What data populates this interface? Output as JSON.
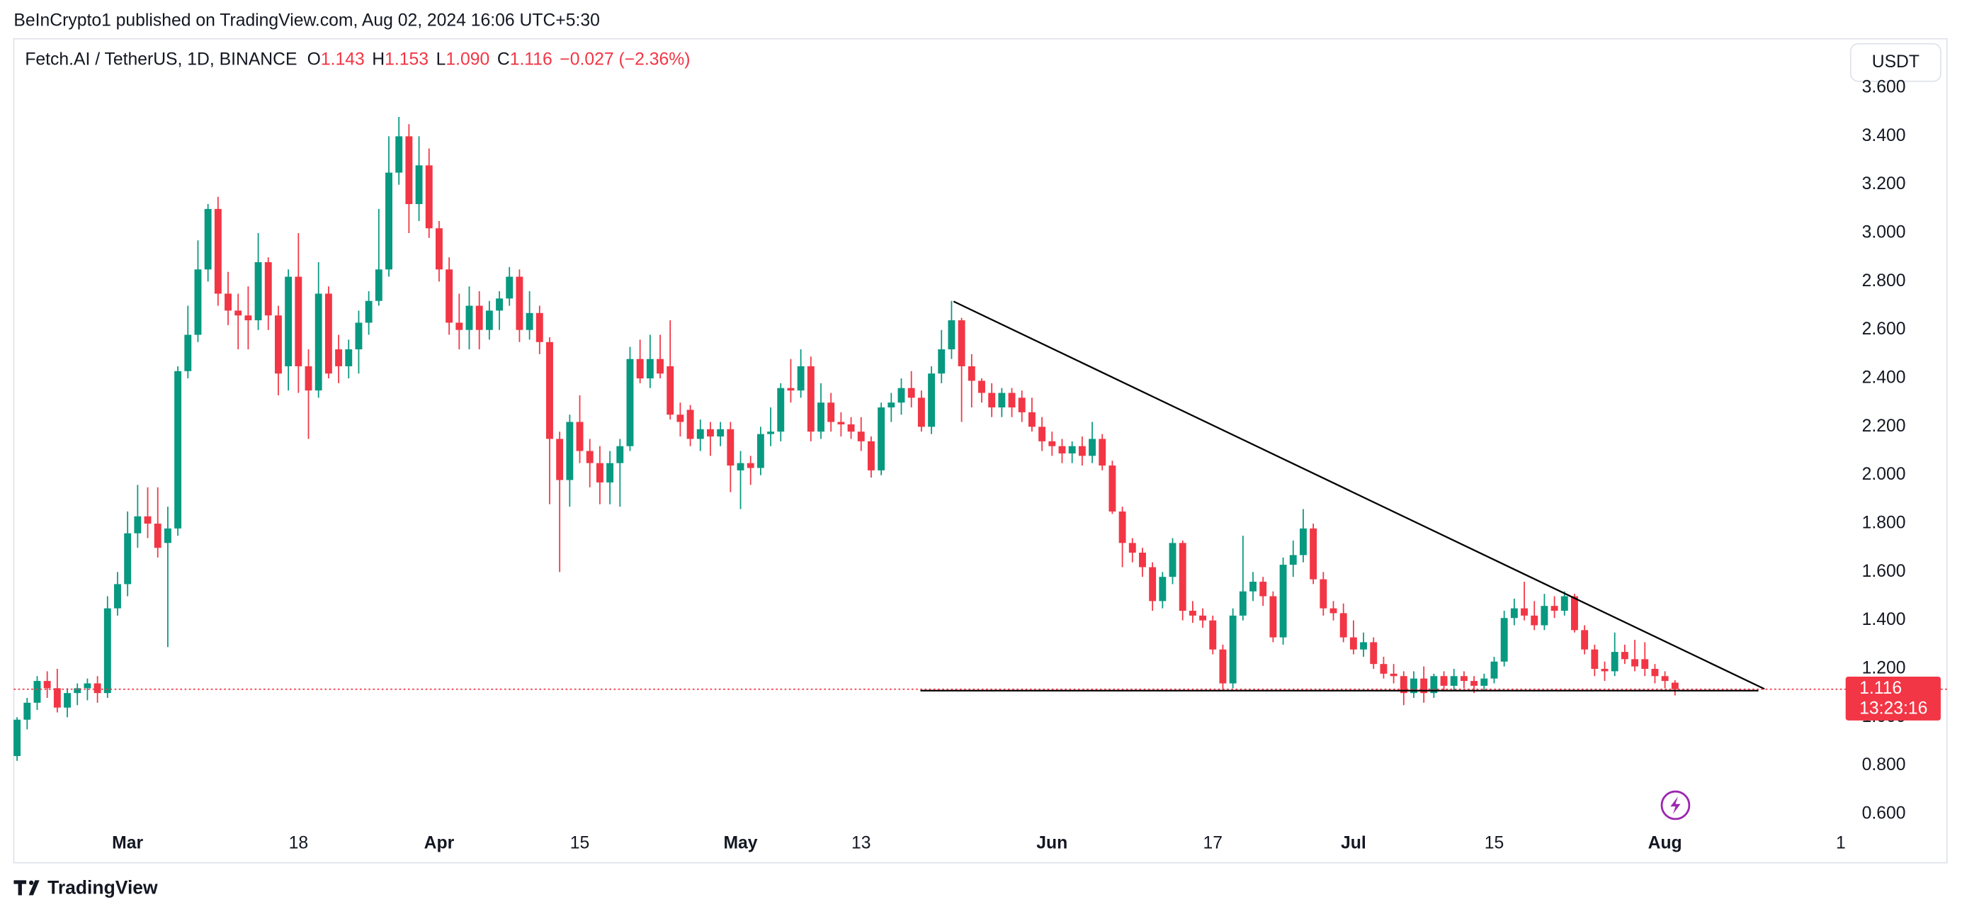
{
  "header": {
    "published": "BeInCrypto1 published on TradingView.com, Aug 02, 2024 16:06 UTC+5:30",
    "currency": "USDT",
    "brand": "TradingView"
  },
  "legend": {
    "symbol": "Fetch.AI / TetherUS, 1D, BINANCE",
    "items": [
      {
        "key": "O",
        "value": "1.143"
      },
      {
        "key": "H",
        "value": "1.153"
      },
      {
        "key": "L",
        "value": "1.090"
      },
      {
        "key": "C",
        "value": "1.116"
      }
    ],
    "change": "−0.027 (−2.36%)"
  },
  "chart_data": {
    "type": "candlestick",
    "up_color": "#089981",
    "down_color": "#f23645",
    "countdown": "13:23:16",
    "xlim": [
      -11.33,
      170.98
    ],
    "ylim": [
      0.554,
      3.803
    ],
    "xticks": [
      {
        "value": 0,
        "label": "Mar"
      },
      {
        "value": 17,
        "label": "18"
      },
      {
        "value": 31,
        "label": "Apr"
      },
      {
        "value": 45,
        "label": "15"
      },
      {
        "value": 61,
        "label": "May"
      },
      {
        "value": 73,
        "label": "13"
      },
      {
        "value": 92,
        "label": "Jun"
      },
      {
        "value": 108,
        "label": "17"
      },
      {
        "value": 122,
        "label": "Jul"
      },
      {
        "value": 136,
        "label": "15"
      },
      {
        "value": 153,
        "label": "Aug"
      },
      {
        "value": 170.5,
        "label": "1"
      }
    ],
    "yticks": [
      {
        "value": 0.6,
        "label": "0.600"
      },
      {
        "value": 0.8,
        "label": "0.800"
      },
      {
        "value": 1.0,
        "label": "1.000"
      },
      {
        "value": 1.2,
        "label": "1.200"
      },
      {
        "value": 1.4,
        "label": "1.400"
      },
      {
        "value": 1.6,
        "label": "1.600"
      },
      {
        "value": 1.8,
        "label": "1.800"
      },
      {
        "value": 2.0,
        "label": "2.000"
      },
      {
        "value": 2.2,
        "label": "2.200"
      },
      {
        "value": 2.4,
        "label": "2.400"
      },
      {
        "value": 2.6,
        "label": "2.600"
      },
      {
        "value": 2.8,
        "label": "2.800"
      },
      {
        "value": 3.0,
        "label": "3.000"
      },
      {
        "value": 3.2,
        "label": "3.200"
      },
      {
        "value": 3.4,
        "label": "3.400"
      },
      {
        "value": 3.6,
        "label": "3.600"
      }
    ],
    "trendlines": [
      {
        "color": "#000000",
        "x": [
          82.2,
          162.9
        ],
        "y": [
          2.718,
          1.117
        ]
      },
      {
        "color": "#000000",
        "x": [
          78.9,
          162.3
        ],
        "y": [
          1.11,
          1.11
        ]
      }
    ],
    "x": [
      -11,
      -10,
      -9,
      -8,
      -7,
      -6,
      -5,
      -4,
      -3,
      -2,
      -1,
      0,
      1,
      2,
      3,
      4,
      5,
      6,
      7,
      8,
      9,
      10,
      11,
      12,
      13,
      14,
      15,
      16,
      17,
      18,
      19,
      20,
      21,
      22,
      23,
      24,
      25,
      26,
      27,
      28,
      29,
      30,
      31,
      32,
      33,
      34,
      35,
      36,
      37,
      38,
      39,
      40,
      41,
      42,
      43,
      44,
      45,
      46,
      47,
      48,
      49,
      50,
      51,
      52,
      53,
      54,
      55,
      56,
      57,
      58,
      59,
      60,
      61,
      62,
      63,
      64,
      65,
      66,
      67,
      68,
      69,
      70,
      71,
      72,
      73,
      74,
      75,
      76,
      77,
      78,
      79,
      80,
      81,
      82,
      83,
      84,
      85,
      86,
      87,
      88,
      89,
      90,
      91,
      92,
      93,
      94,
      95,
      96,
      97,
      98,
      99,
      100,
      101,
      102,
      103,
      104,
      105,
      106,
      107,
      108,
      109,
      110,
      111,
      112,
      113,
      114,
      115,
      116,
      117,
      118,
      119,
      120,
      121,
      122,
      123,
      124,
      125,
      126,
      127,
      128,
      129,
      130,
      131,
      132,
      133,
      134,
      135,
      136,
      137,
      138,
      139,
      140,
      141,
      142,
      143,
      144,
      145,
      146,
      147,
      148,
      149,
      150,
      151,
      152,
      153,
      154
    ],
    "ohlc": [
      [
        0.84,
        1.0,
        0.82,
        0.99
      ],
      [
        0.99,
        1.08,
        0.95,
        1.06
      ],
      [
        1.06,
        1.17,
        1.03,
        1.15
      ],
      [
        1.15,
        1.19,
        1.08,
        1.12
      ],
      [
        1.12,
        1.2,
        1.02,
        1.04
      ],
      [
        1.04,
        1.12,
        1.0,
        1.1
      ],
      [
        1.1,
        1.14,
        1.05,
        1.12
      ],
      [
        1.12,
        1.16,
        1.07,
        1.14
      ],
      [
        1.14,
        1.17,
        1.06,
        1.1
      ],
      [
        1.1,
        1.5,
        1.08,
        1.45
      ],
      [
        1.45,
        1.6,
        1.42,
        1.55
      ],
      [
        1.55,
        1.85,
        1.5,
        1.76
      ],
      [
        1.76,
        1.96,
        1.7,
        1.83
      ],
      [
        1.83,
        1.95,
        1.74,
        1.8
      ],
      [
        1.8,
        1.95,
        1.66,
        1.7
      ],
      [
        1.72,
        1.87,
        1.29,
        1.78
      ],
      [
        1.78,
        2.45,
        1.75,
        2.43
      ],
      [
        2.43,
        2.7,
        2.4,
        2.58
      ],
      [
        2.58,
        2.97,
        2.55,
        2.85
      ],
      [
        2.85,
        3.12,
        2.8,
        3.1
      ],
      [
        3.1,
        3.15,
        2.7,
        2.75
      ],
      [
        2.75,
        2.84,
        2.62,
        2.68
      ],
      [
        2.68,
        2.75,
        2.52,
        2.66
      ],
      [
        2.66,
        2.78,
        2.52,
        2.64
      ],
      [
        2.64,
        3.0,
        2.6,
        2.88
      ],
      [
        2.88,
        2.9,
        2.6,
        2.66
      ],
      [
        2.66,
        2.7,
        2.33,
        2.42
      ],
      [
        2.45,
        2.85,
        2.35,
        2.82
      ],
      [
        2.82,
        3.0,
        2.34,
        2.45
      ],
      [
        2.45,
        2.52,
        2.15,
        2.35
      ],
      [
        2.35,
        2.88,
        2.32,
        2.75
      ],
      [
        2.75,
        2.78,
        2.4,
        2.42
      ],
      [
        2.52,
        2.58,
        2.38,
        2.45
      ],
      [
        2.45,
        2.56,
        2.4,
        2.52
      ],
      [
        2.52,
        2.68,
        2.42,
        2.63
      ],
      [
        2.63,
        2.76,
        2.58,
        2.72
      ],
      [
        2.72,
        3.1,
        2.7,
        2.85
      ],
      [
        2.85,
        3.4,
        2.82,
        3.25
      ],
      [
        3.25,
        3.48,
        3.2,
        3.4
      ],
      [
        3.4,
        3.45,
        3.0,
        3.12
      ],
      [
        3.12,
        3.4,
        3.05,
        3.28
      ],
      [
        3.28,
        3.35,
        2.98,
        3.02
      ],
      [
        3.02,
        3.05,
        2.8,
        2.85
      ],
      [
        2.85,
        2.9,
        2.58,
        2.63
      ],
      [
        2.63,
        2.75,
        2.52,
        2.6
      ],
      [
        2.6,
        2.78,
        2.52,
        2.7
      ],
      [
        2.7,
        2.76,
        2.52,
        2.6
      ],
      [
        2.6,
        2.72,
        2.56,
        2.68
      ],
      [
        2.68,
        2.76,
        2.6,
        2.73
      ],
      [
        2.73,
        2.86,
        2.7,
        2.82
      ],
      [
        2.82,
        2.85,
        2.55,
        2.6
      ],
      [
        2.6,
        2.76,
        2.56,
        2.67
      ],
      [
        2.67,
        2.7,
        2.5,
        2.55
      ],
      [
        2.55,
        2.57,
        1.88,
        2.15
      ],
      [
        2.15,
        2.18,
        1.6,
        1.98
      ],
      [
        1.98,
        2.25,
        1.87,
        2.22
      ],
      [
        2.22,
        2.33,
        2.05,
        2.1
      ],
      [
        2.1,
        2.15,
        1.95,
        2.05
      ],
      [
        2.05,
        2.12,
        1.88,
        1.97
      ],
      [
        1.97,
        2.1,
        1.88,
        2.05
      ],
      [
        2.05,
        2.15,
        1.87,
        2.12
      ],
      [
        2.12,
        2.53,
        2.1,
        2.48
      ],
      [
        2.48,
        2.56,
        2.38,
        2.4
      ],
      [
        2.4,
        2.58,
        2.36,
        2.48
      ],
      [
        2.48,
        2.58,
        2.4,
        2.42
      ],
      [
        2.45,
        2.64,
        2.23,
        2.25
      ],
      [
        2.25,
        2.3,
        2.16,
        2.22
      ],
      [
        2.27,
        2.29,
        2.12,
        2.15
      ],
      [
        2.15,
        2.23,
        2.1,
        2.19
      ],
      [
        2.19,
        2.22,
        2.08,
        2.16
      ],
      [
        2.16,
        2.22,
        2.12,
        2.19
      ],
      [
        2.19,
        2.22,
        1.93,
        2.04
      ],
      [
        2.02,
        2.1,
        1.86,
        2.05
      ],
      [
        2.05,
        2.08,
        1.96,
        2.03
      ],
      [
        2.03,
        2.2,
        2.0,
        2.17
      ],
      [
        2.17,
        2.28,
        2.12,
        2.18
      ],
      [
        2.18,
        2.38,
        2.14,
        2.36
      ],
      [
        2.36,
        2.48,
        2.3,
        2.35
      ],
      [
        2.35,
        2.52,
        2.32,
        2.45
      ],
      [
        2.45,
        2.49,
        2.14,
        2.18
      ],
      [
        2.18,
        2.38,
        2.15,
        2.3
      ],
      [
        2.3,
        2.34,
        2.18,
        2.22
      ],
      [
        2.22,
        2.26,
        2.16,
        2.21
      ],
      [
        2.21,
        2.24,
        2.15,
        2.18
      ],
      [
        2.18,
        2.24,
        2.1,
        2.14
      ],
      [
        2.14,
        2.16,
        1.99,
        2.02
      ],
      [
        2.02,
        2.3,
        2.0,
        2.28
      ],
      [
        2.28,
        2.34,
        2.22,
        2.3
      ],
      [
        2.3,
        2.4,
        2.25,
        2.36
      ],
      [
        2.36,
        2.43,
        2.28,
        2.32
      ],
      [
        2.32,
        2.35,
        2.18,
        2.2
      ],
      [
        2.2,
        2.45,
        2.17,
        2.42
      ],
      [
        2.42,
        2.6,
        2.38,
        2.52
      ],
      [
        2.52,
        2.72,
        2.48,
        2.64
      ],
      [
        2.64,
        2.65,
        2.22,
        2.45
      ],
      [
        2.45,
        2.5,
        2.28,
        2.39
      ],
      [
        2.39,
        2.4,
        2.3,
        2.34
      ],
      [
        2.34,
        2.38,
        2.24,
        2.28
      ],
      [
        2.28,
        2.36,
        2.24,
        2.34
      ],
      [
        2.34,
        2.36,
        2.24,
        2.28
      ],
      [
        2.32,
        2.35,
        2.22,
        2.26
      ],
      [
        2.26,
        2.32,
        2.18,
        2.2
      ],
      [
        2.2,
        2.24,
        2.1,
        2.14
      ],
      [
        2.14,
        2.18,
        2.08,
        2.12
      ],
      [
        2.12,
        2.15,
        2.05,
        2.09
      ],
      [
        2.09,
        2.14,
        2.05,
        2.12
      ],
      [
        2.12,
        2.16,
        2.04,
        2.08
      ],
      [
        2.08,
        2.22,
        2.05,
        2.15
      ],
      [
        2.15,
        2.17,
        2.02,
        2.04
      ],
      [
        2.04,
        2.06,
        1.84,
        1.85
      ],
      [
        1.85,
        1.87,
        1.62,
        1.72
      ],
      [
        1.72,
        1.74,
        1.64,
        1.68
      ],
      [
        1.68,
        1.7,
        1.58,
        1.62
      ],
      [
        1.62,
        1.64,
        1.44,
        1.48
      ],
      [
        1.48,
        1.6,
        1.45,
        1.58
      ],
      [
        1.58,
        1.74,
        1.55,
        1.72
      ],
      [
        1.72,
        1.73,
        1.4,
        1.44
      ],
      [
        1.44,
        1.48,
        1.39,
        1.42
      ],
      [
        1.42,
        1.45,
        1.37,
        1.4
      ],
      [
        1.4,
        1.42,
        1.26,
        1.28
      ],
      [
        1.28,
        1.3,
        1.11,
        1.14
      ],
      [
        1.14,
        1.45,
        1.12,
        1.42
      ],
      [
        1.42,
        1.75,
        1.4,
        1.52
      ],
      [
        1.52,
        1.6,
        1.48,
        1.56
      ],
      [
        1.56,
        1.58,
        1.46,
        1.5
      ],
      [
        1.5,
        1.52,
        1.31,
        1.33
      ],
      [
        1.33,
        1.66,
        1.3,
        1.63
      ],
      [
        1.63,
        1.73,
        1.58,
        1.67
      ],
      [
        1.67,
        1.86,
        1.64,
        1.78
      ],
      [
        1.78,
        1.8,
        1.55,
        1.57
      ],
      [
        1.57,
        1.6,
        1.42,
        1.45
      ],
      [
        1.45,
        1.48,
        1.4,
        1.43
      ],
      [
        1.43,
        1.47,
        1.31,
        1.33
      ],
      [
        1.33,
        1.4,
        1.26,
        1.28
      ],
      [
        1.28,
        1.35,
        1.25,
        1.31
      ],
      [
        1.31,
        1.33,
        1.2,
        1.22
      ],
      [
        1.22,
        1.25,
        1.16,
        1.18
      ],
      [
        1.18,
        1.22,
        1.14,
        1.17
      ],
      [
        1.17,
        1.19,
        1.05,
        1.1
      ],
      [
        1.1,
        1.19,
        1.08,
        1.16
      ],
      [
        1.16,
        1.21,
        1.06,
        1.1
      ],
      [
        1.1,
        1.18,
        1.08,
        1.17
      ],
      [
        1.17,
        1.19,
        1.11,
        1.13
      ],
      [
        1.13,
        1.2,
        1.11,
        1.17
      ],
      [
        1.17,
        1.19,
        1.12,
        1.15
      ],
      [
        1.15,
        1.17,
        1.1,
        1.13
      ],
      [
        1.13,
        1.18,
        1.11,
        1.16
      ],
      [
        1.16,
        1.25,
        1.14,
        1.23
      ],
      [
        1.23,
        1.44,
        1.21,
        1.41
      ],
      [
        1.41,
        1.49,
        1.38,
        1.45
      ],
      [
        1.45,
        1.56,
        1.4,
        1.42
      ],
      [
        1.42,
        1.48,
        1.36,
        1.38
      ],
      [
        1.38,
        1.51,
        1.36,
        1.46
      ],
      [
        1.46,
        1.5,
        1.41,
        1.44
      ],
      [
        1.44,
        1.52,
        1.42,
        1.5
      ],
      [
        1.5,
        1.51,
        1.35,
        1.36
      ],
      [
        1.36,
        1.38,
        1.26,
        1.28
      ],
      [
        1.28,
        1.3,
        1.17,
        1.2
      ],
      [
        1.2,
        1.23,
        1.15,
        1.19
      ],
      [
        1.19,
        1.35,
        1.17,
        1.27
      ],
      [
        1.27,
        1.3,
        1.22,
        1.24
      ],
      [
        1.24,
        1.32,
        1.19,
        1.21
      ],
      [
        1.24,
        1.31,
        1.17,
        1.2
      ],
      [
        1.2,
        1.22,
        1.14,
        1.17
      ],
      [
        1.17,
        1.19,
        1.12,
        1.15
      ],
      [
        1.143,
        1.153,
        1.09,
        1.116
      ]
    ]
  }
}
